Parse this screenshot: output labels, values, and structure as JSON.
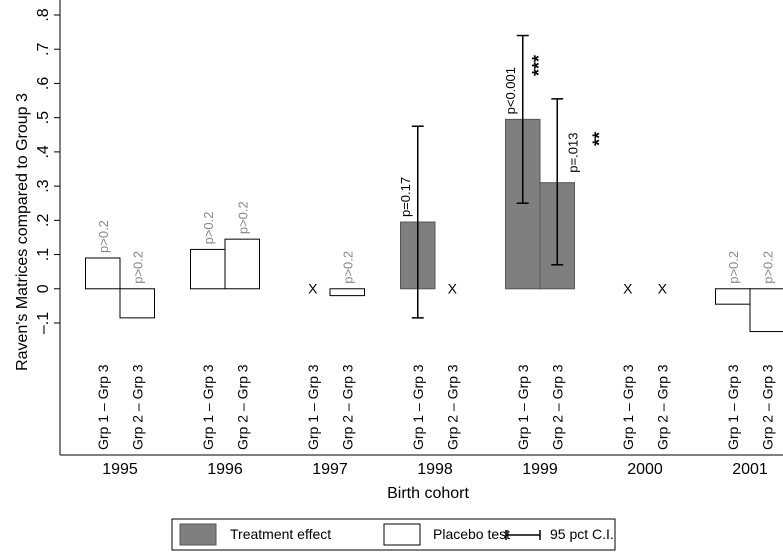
{
  "chart_data": {
    "type": "bar",
    "ylabel": "Raven's Matrices compared to Group 3",
    "xlabel": "Birth cohort",
    "categories": [
      "1995",
      "1996",
      "1997",
      "1998",
      "1999",
      "2000",
      "2001"
    ],
    "missing_label": "X",
    "treatment_color": "#7f7f7f",
    "placebo_color": "#ffffff",
    "series": [
      {
        "name": "Grp 1 – Grp 3",
        "values": [
          0.09,
          0.115,
          null,
          0.195,
          0.495,
          null,
          -0.045
        ],
        "treated": [
          false,
          false,
          false,
          true,
          true,
          false,
          false
        ],
        "ci_low": [
          null,
          null,
          null,
          -0.085,
          0.25,
          null,
          null
        ],
        "ci_high": [
          null,
          null,
          null,
          0.475,
          0.74,
          null,
          null
        ],
        "p_labels": [
          "p>0.2",
          "p>0.2",
          null,
          "p=0.17",
          "p<0.001",
          null,
          "p>0.2"
        ],
        "stars": [
          null,
          null,
          null,
          null,
          "***",
          null,
          null
        ]
      },
      {
        "name": "Grp 2 – Grp 3",
        "values": [
          -0.085,
          0.145,
          -0.02,
          null,
          0.31,
          null,
          -0.125
        ],
        "treated": [
          false,
          false,
          false,
          false,
          true,
          false,
          false
        ],
        "ci_low": [
          null,
          null,
          null,
          null,
          0.07,
          null,
          null
        ],
        "ci_high": [
          null,
          null,
          null,
          null,
          0.555,
          null,
          null
        ],
        "p_labels": [
          "p>0.2",
          "p>0.2",
          "p>0.2",
          null,
          "p=.013",
          null,
          "p>0.2"
        ],
        "stars": [
          null,
          null,
          null,
          null,
          "**",
          null,
          null
        ]
      }
    ],
    "ylim": [
      -0.1,
      0.8
    ],
    "yticks": [
      {
        "value": -0.1,
        "label": "–.1"
      },
      0,
      {
        "value": 0.1,
        "label": ".1"
      },
      {
        "value": 0.2,
        "label": ".2"
      },
      {
        "value": 0.3,
        "label": ".3"
      },
      {
        "value": 0.4,
        "label": ".4"
      },
      {
        "value": 0.5,
        "label": ".5"
      },
      {
        "value": 0.6,
        "label": ".6"
      },
      {
        "value": 0.7,
        "label": ".7"
      },
      {
        "value": 0.8,
        "label": ".8"
      }
    ],
    "legend": [
      "Treatment effect",
      "Placebo test",
      "95 pct C.I."
    ]
  }
}
